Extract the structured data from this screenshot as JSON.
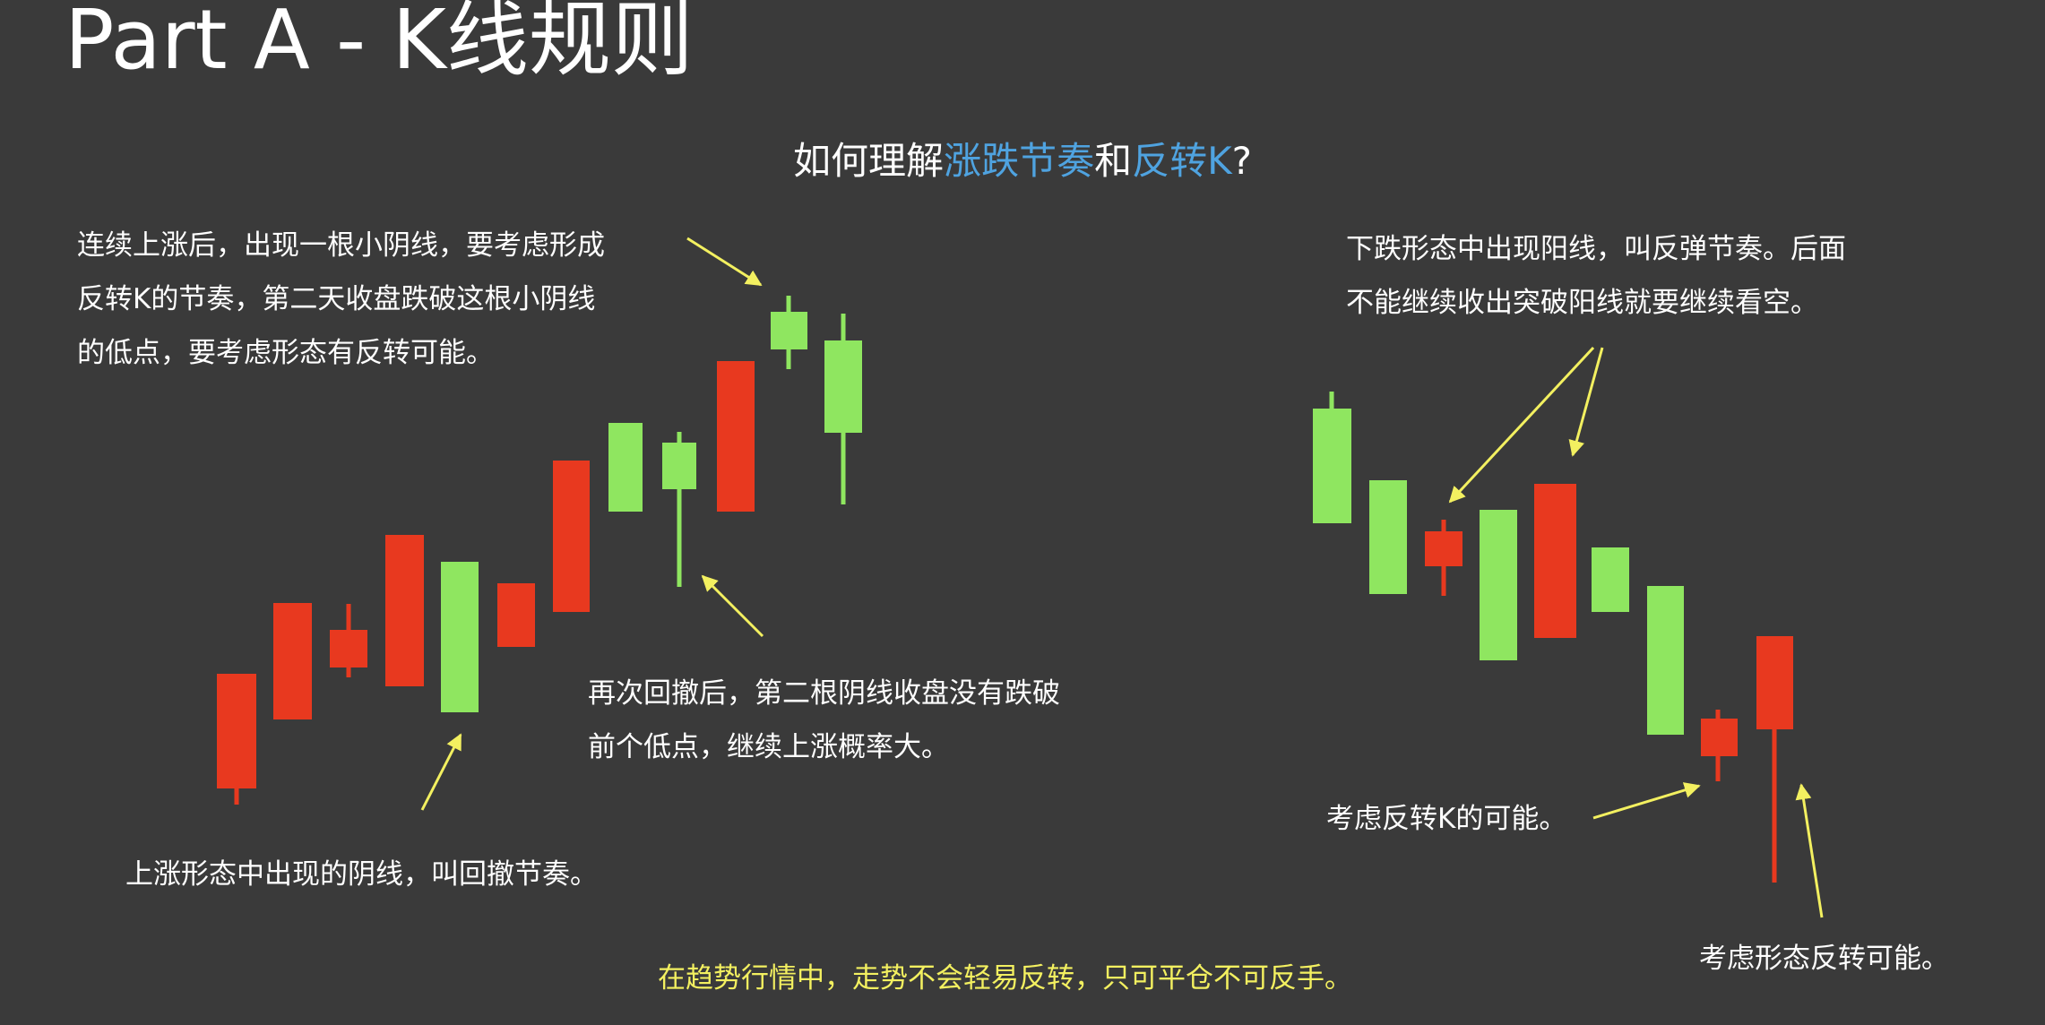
{
  "title": "Part A - K线规则",
  "subtitle": {
    "pre": "如何理解",
    "hl1": "涨跌节奏",
    "mid": "和",
    "hl2": "反转K",
    "post": "?"
  },
  "notes": {
    "top_left": [
      "连续上涨后，出现一根小阴线，要考虑形成",
      "反转K的节奏，第二天收盘跌破这根小阴线",
      "的低点，要考虑形态有反转可能。"
    ],
    "middle": [
      "再次回撤后，第二根阴线收盘没有跌破",
      "前个低点，继续上涨概率大。"
    ],
    "bottom_left": "上涨形态中出现的阴线，叫回撤节奏。",
    "top_right": [
      "下跌形态中出现阳线，叫反弹节奏。后面",
      "不能继续收出突破阳线就要继续看空。"
    ],
    "reversal_k": "考虑反转K的可能。",
    "pattern_reversal": "考虑形态反转可能。"
  },
  "footer": "在趋势行情中，走势不会轻易反转，只可平仓不可反手。",
  "colors": {
    "background": "#3a3a3a",
    "up_candle": "#e8391f",
    "down_candle": "#8fe660",
    "arrow": "#f3f060",
    "highlight": "#4fa3e0"
  },
  "candles": {
    "uptrend": [
      {
        "open": 1,
        "close": 2,
        "high": 2,
        "low": 0
      },
      {
        "open": 2,
        "close": 3,
        "high": 3,
        "low": 2
      },
      {
        "open": 3,
        "close": 4,
        "high": 5,
        "low": 2
      },
      {
        "open": 3,
        "close": 5,
        "high": 5,
        "low": 3
      },
      {
        "open": 5,
        "close": 3,
        "high": 5,
        "low": 3
      },
      {
        "open": 3,
        "close": 4,
        "high": 4,
        "low": 3
      },
      {
        "open": 4,
        "close": 6,
        "high": 6,
        "low": 4
      },
      {
        "open": 7,
        "close": 6,
        "high": 7,
        "low": 6
      },
      {
        "open": 6,
        "close": 5,
        "high": 6,
        "low": 4
      },
      {
        "open": 6,
        "close": 7,
        "high": 7,
        "low": 6
      },
      {
        "open": 8,
        "close": 7,
        "high": 8,
        "low": 7
      },
      {
        "open": 7,
        "close": 6,
        "high": 7,
        "low": 5
      }
    ],
    "downtrend": [
      {
        "open": 9,
        "close": 8,
        "high": 9,
        "low": 8
      },
      {
        "open": 8,
        "close": 7,
        "high": 8,
        "low": 7
      },
      {
        "open": 7,
        "close": 8,
        "high": 8,
        "low": 7
      },
      {
        "open": 8,
        "close": 6,
        "high": 8,
        "low": 6
      },
      {
        "open": 7,
        "close": 8,
        "high": 8,
        "low": 7
      },
      {
        "open": 7,
        "close": 6,
        "high": 7,
        "low": 6
      },
      {
        "open": 7,
        "close": 5,
        "high": 7,
        "low": 5
      },
      {
        "open": 5,
        "close": 6,
        "high": 6,
        "low": 4
      },
      {
        "open": 5,
        "close": 6,
        "high": 6,
        "low": 3
      }
    ]
  }
}
